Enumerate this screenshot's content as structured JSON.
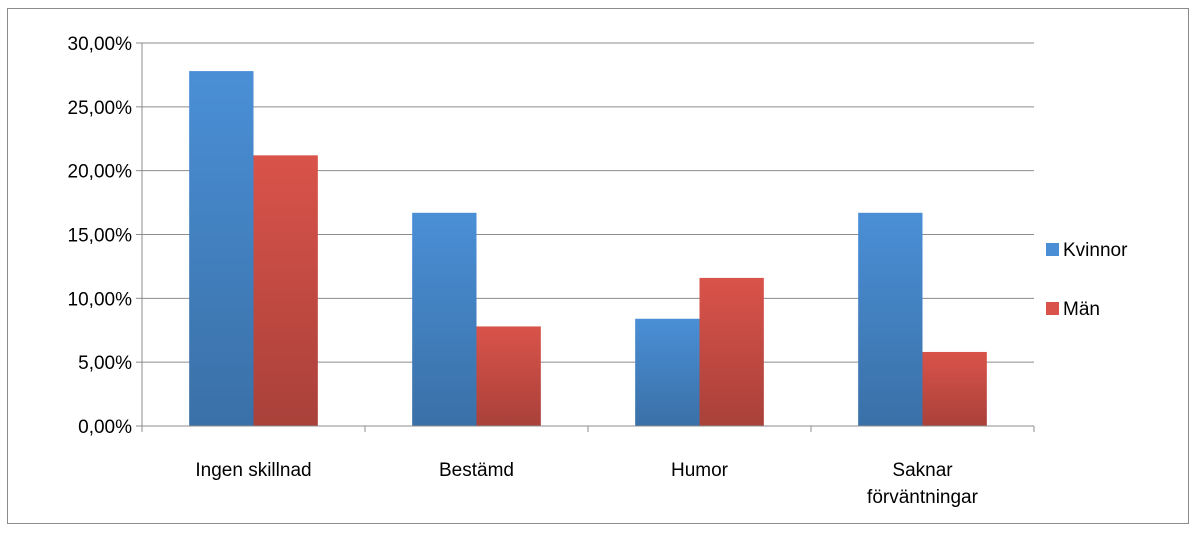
{
  "chart_data": {
    "type": "bar",
    "categories": [
      [
        "Ingen skillnad"
      ],
      [
        "Bestämd"
      ],
      [
        "Humor"
      ],
      [
        "Saknar",
        "förväntningar"
      ]
    ],
    "series": [
      {
        "name": "Kvinnor",
        "values": [
          27.8,
          16.7,
          8.4,
          16.7
        ],
        "color": "#4a8fd6"
      },
      {
        "name": "Män",
        "values": [
          21.2,
          7.8,
          11.6,
          5.8
        ],
        "color": "#d9534a"
      }
    ],
    "yticks": [
      "0,00%",
      "5,00%",
      "10,00%",
      "15,00%",
      "20,00%",
      "25,00%",
      "30,00%"
    ],
    "ylim": [
      0,
      30
    ],
    "grid": true,
    "legend": "right",
    "title": "",
    "xlabel": "",
    "ylabel": ""
  }
}
